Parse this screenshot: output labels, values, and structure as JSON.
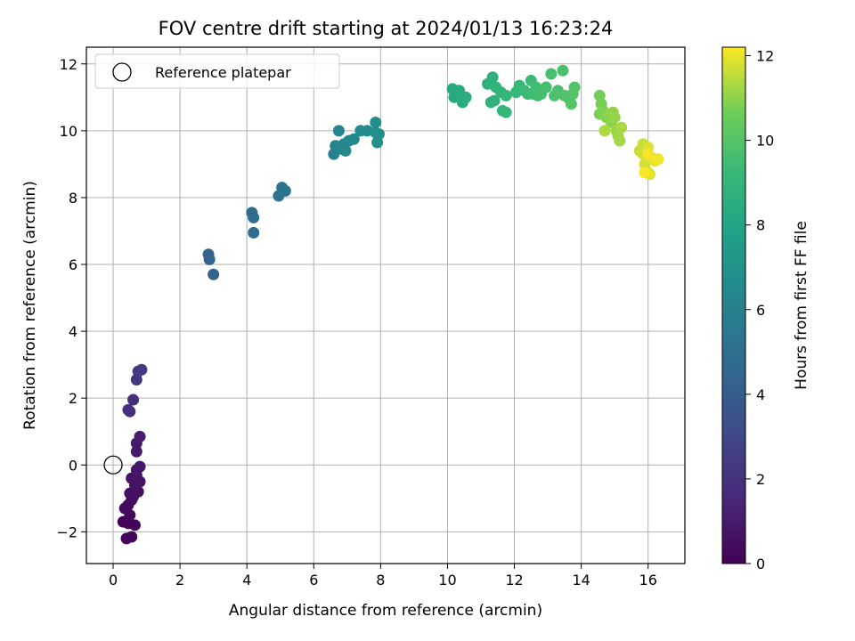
{
  "chart_data": {
    "type": "scatter",
    "title": "FOV centre drift starting at 2024/01/13 16:23:24",
    "xlabel": "Angular distance from reference (arcmin)",
    "ylabel": "Rotation from reference (arcmin)",
    "xlim": [
      -0.8,
      17.1
    ],
    "ylim": [
      -2.95,
      12.5
    ],
    "x_ticks": [
      0,
      2,
      4,
      6,
      8,
      10,
      12,
      14,
      16
    ],
    "y_ticks": [
      -2,
      0,
      2,
      4,
      6,
      8,
      10,
      12
    ],
    "x_tick_labels": [
      "0",
      "2",
      "4",
      "6",
      "8",
      "10",
      "12",
      "14",
      "16"
    ],
    "y_tick_labels": [
      "−2",
      "0",
      "2",
      "4",
      "6",
      "8",
      "10",
      "12"
    ],
    "grid": true,
    "legend": {
      "placement": "top-left",
      "entries": [
        "Reference platepar"
      ]
    },
    "reference_point": {
      "x": 0,
      "y": 0,
      "label": "Reference platepar"
    },
    "colorbar": {
      "label": "Hours from first FF file",
      "colormap": "viridis",
      "range": [
        0,
        12.2
      ],
      "ticks": [
        0,
        2,
        4,
        6,
        8,
        10,
        12
      ],
      "tick_labels": [
        "0",
        "2",
        "4",
        "6",
        "8",
        "10",
        "12"
      ]
    },
    "points": [
      [
        0.3,
        -1.7,
        0.05
      ],
      [
        0.45,
        -1.75,
        0.1
      ],
      [
        0.65,
        -1.8,
        0.15
      ],
      [
        0.4,
        -2.2,
        0.2
      ],
      [
        0.55,
        -2.15,
        0.25
      ],
      [
        0.5,
        -1.5,
        0.3
      ],
      [
        0.35,
        -1.3,
        0.35
      ],
      [
        0.45,
        -1.2,
        0.4
      ],
      [
        0.55,
        -1.05,
        0.45
      ],
      [
        0.6,
        -0.95,
        0.5
      ],
      [
        0.5,
        -0.85,
        0.55
      ],
      [
        0.75,
        -0.8,
        0.6
      ],
      [
        0.65,
        -0.6,
        0.65
      ],
      [
        0.8,
        -0.5,
        0.7
      ],
      [
        0.55,
        -0.4,
        0.75
      ],
      [
        0.7,
        -0.3,
        0.8
      ],
      [
        0.8,
        -0.05,
        0.85
      ],
      [
        0.7,
        -0.15,
        0.9
      ],
      [
        0.7,
        0.4,
        0.95
      ],
      [
        0.7,
        0.65,
        1.0
      ],
      [
        0.8,
        0.85,
        1.05
      ],
      [
        0.5,
        1.6,
        1.8
      ],
      [
        0.45,
        1.65,
        1.85
      ],
      [
        0.6,
        1.95,
        1.9
      ],
      [
        0.7,
        2.55,
        2.2
      ],
      [
        0.75,
        2.8,
        2.3
      ],
      [
        0.85,
        2.85,
        2.35
      ],
      [
        2.85,
        6.3,
        4.3
      ],
      [
        2.88,
        6.15,
        4.35
      ],
      [
        3.0,
        5.7,
        4.4
      ],
      [
        4.15,
        7.55,
        4.8
      ],
      [
        4.2,
        7.4,
        4.85
      ],
      [
        4.2,
        6.95,
        4.9
      ],
      [
        4.95,
        8.05,
        5.2
      ],
      [
        5.05,
        8.3,
        5.25
      ],
      [
        5.15,
        8.2,
        5.3
      ],
      [
        6.6,
        9.3,
        6.1
      ],
      [
        6.7,
        9.5,
        6.15
      ],
      [
        6.65,
        9.55,
        6.2
      ],
      [
        6.75,
        10.0,
        6.25
      ],
      [
        6.85,
        9.45,
        6.3
      ],
      [
        6.9,
        9.6,
        6.35
      ],
      [
        6.95,
        9.4,
        6.4
      ],
      [
        7.05,
        9.7,
        6.45
      ],
      [
        7.2,
        9.75,
        6.5
      ],
      [
        7.4,
        10.0,
        6.55
      ],
      [
        7.6,
        10.0,
        6.6
      ],
      [
        7.85,
        10.25,
        6.7
      ],
      [
        7.85,
        9.95,
        6.75
      ],
      [
        7.95,
        9.9,
        6.8
      ],
      [
        7.9,
        9.65,
        6.85
      ],
      [
        10.15,
        11.25,
        8.2
      ],
      [
        10.2,
        11.0,
        8.25
      ],
      [
        10.3,
        11.15,
        8.3
      ],
      [
        10.35,
        11.2,
        8.35
      ],
      [
        10.4,
        11.05,
        8.4
      ],
      [
        10.45,
        10.85,
        8.45
      ],
      [
        10.55,
        11.0,
        8.5
      ],
      [
        11.2,
        11.4,
        8.7
      ],
      [
        11.35,
        11.6,
        8.75
      ],
      [
        11.3,
        10.85,
        8.8
      ],
      [
        11.4,
        10.9,
        8.85
      ],
      [
        11.45,
        11.3,
        8.9
      ],
      [
        11.6,
        11.15,
        8.95
      ],
      [
        11.65,
        10.6,
        9.0
      ],
      [
        11.75,
        10.55,
        9.05
      ],
      [
        11.75,
        11.05,
        9.1
      ],
      [
        12.05,
        11.15,
        9.15
      ],
      [
        12.15,
        11.35,
        9.2
      ],
      [
        12.3,
        11.2,
        9.25
      ],
      [
        12.4,
        11.1,
        9.3
      ],
      [
        12.5,
        11.5,
        9.35
      ],
      [
        12.55,
        11.1,
        9.4
      ],
      [
        12.65,
        11.3,
        9.45
      ],
      [
        12.7,
        11.05,
        9.5
      ],
      [
        12.8,
        11.1,
        9.55
      ],
      [
        12.95,
        11.3,
        9.6
      ],
      [
        13.1,
        11.7,
        9.65
      ],
      [
        13.3,
        11.2,
        9.7
      ],
      [
        13.45,
        11.8,
        9.75
      ],
      [
        13.2,
        11.05,
        9.8
      ],
      [
        13.5,
        11.05,
        9.85
      ],
      [
        13.65,
        10.95,
        9.9
      ],
      [
        13.8,
        11.3,
        9.95
      ],
      [
        13.75,
        11.1,
        10.0
      ],
      [
        13.7,
        10.8,
        10.05
      ],
      [
        14.55,
        11.05,
        10.7
      ],
      [
        14.6,
        10.8,
        10.75
      ],
      [
        14.55,
        10.5,
        10.8
      ],
      [
        14.65,
        10.6,
        10.85
      ],
      [
        14.75,
        10.4,
        10.9
      ],
      [
        14.85,
        10.5,
        10.95
      ],
      [
        14.9,
        10.25,
        11.0
      ],
      [
        14.95,
        10.55,
        11.05
      ],
      [
        15.0,
        10.4,
        11.1
      ],
      [
        15.05,
        10.0,
        11.15
      ],
      [
        15.1,
        9.85,
        11.2
      ],
      [
        15.15,
        9.7,
        11.25
      ],
      [
        15.2,
        10.1,
        11.3
      ],
      [
        14.7,
        10.0,
        11.35
      ],
      [
        15.75,
        9.4,
        11.6
      ],
      [
        15.85,
        9.6,
        11.65
      ],
      [
        15.85,
        9.3,
        11.7
      ],
      [
        15.9,
        9.0,
        11.75
      ],
      [
        15.95,
        8.8,
        11.8
      ],
      [
        16.0,
        9.5,
        11.85
      ],
      [
        16.05,
        8.7,
        11.9
      ],
      [
        16.1,
        9.2,
        11.95
      ],
      [
        16.2,
        9.1,
        12.0
      ],
      [
        16.3,
        9.15,
        12.05
      ],
      [
        16.0,
        9.3,
        12.1
      ],
      [
        15.9,
        8.75,
        12.15
      ]
    ]
  }
}
